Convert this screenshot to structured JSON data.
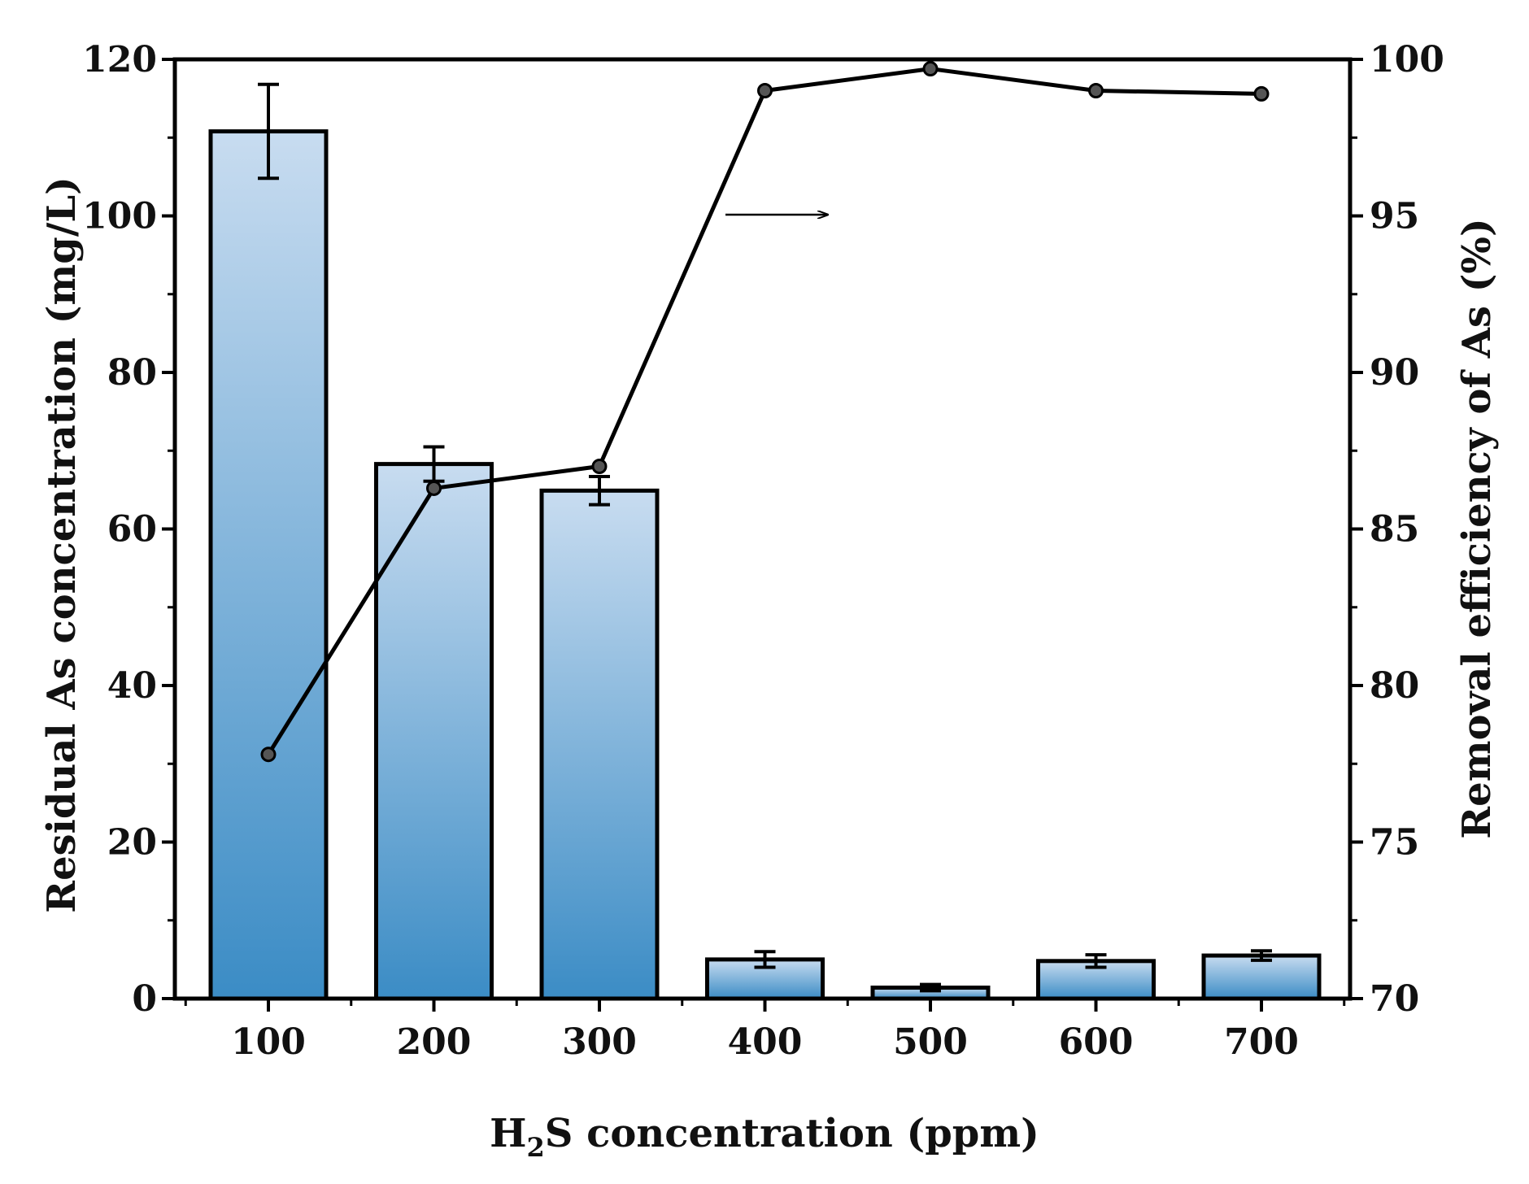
{
  "chart_data": {
    "type": "bar",
    "xlabel_main": "H",
    "xlabel_sub": "2",
    "xlabel_rest": "S concentration (ppm)",
    "ylabel_left": "Residual As concentration (mg/L)",
    "ylabel_right": "Removal efficiency of As (%)",
    "categories": [
      "100",
      "200",
      "300",
      "400",
      "500",
      "600",
      "700"
    ],
    "bars": {
      "name": "Residual As concentration",
      "values": [
        110.8,
        68.3,
        64.9,
        5.0,
        1.4,
        4.8,
        5.5
      ],
      "errors": [
        6.0,
        2.2,
        1.8,
        1.0,
        0.4,
        0.8,
        0.6
      ]
    },
    "line": {
      "name": "Removal efficiency of As",
      "values": [
        77.8,
        86.3,
        87.0,
        99.0,
        99.7,
        99.0,
        98.9
      ]
    },
    "ylim_left": [
      0,
      120
    ],
    "ylim_right": [
      70,
      100
    ],
    "yticks_left": [
      "0",
      "20",
      "40",
      "60",
      "80",
      "100",
      "120"
    ],
    "yticks_right": [
      "70",
      "75",
      "80",
      "85",
      "90",
      "95",
      "100"
    ],
    "annotation": "arrow pointing right to indicate the line uses the right axis",
    "colors": {
      "bar_top": "#c8dcf0",
      "bar_bottom": "#3b8cc5",
      "line": "#000000",
      "marker": "#555555"
    }
  }
}
